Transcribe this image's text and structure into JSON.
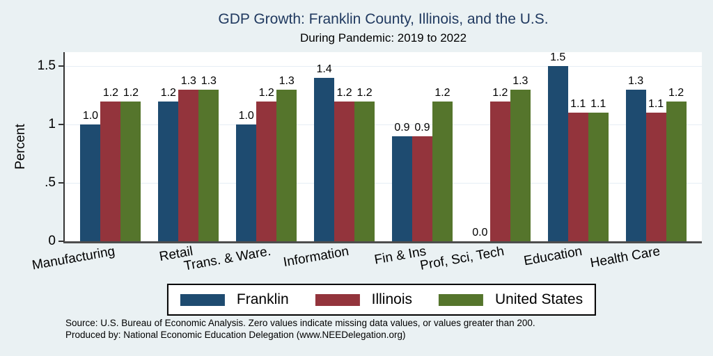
{
  "chart_data": {
    "type": "bar",
    "title": "GDP Growth: Franklin County, Illinois, and the U.S.",
    "subtitle": "During Pandemic: 2019 to 2022",
    "ylabel": "Percent",
    "xlabel": "",
    "ylim": [
      0,
      1.62
    ],
    "grid": true,
    "legend_position": "bottom",
    "value_label_format": "one-decimal",
    "yticks": [
      {
        "value": 0,
        "label": "0"
      },
      {
        "value": 0.5,
        "label": ".5"
      },
      {
        "value": 1,
        "label": "1"
      },
      {
        "value": 1.5,
        "label": "1.5"
      }
    ],
    "categories": [
      "Manufacturing",
      "Retail",
      "Trans. & Ware.",
      "Information",
      "Fin & Ins",
      "Prof, Sci, Tech",
      "Education",
      "Health Care"
    ],
    "series": [
      {
        "name": "Franklin",
        "color": "#1e4b70",
        "values": [
          1.0,
          1.2,
          1.0,
          1.4,
          0.9,
          0.0,
          1.5,
          1.3
        ]
      },
      {
        "name": "Illinois",
        "color": "#93343c",
        "values": [
          1.2,
          1.3,
          1.2,
          1.2,
          0.9,
          1.2,
          1.1,
          1.1
        ]
      },
      {
        "name": "United States",
        "color": "#55752c",
        "values": [
          1.2,
          1.3,
          1.3,
          1.2,
          1.2,
          1.3,
          1.1,
          1.2
        ]
      }
    ]
  },
  "notes": {
    "line1": "Source: U.S. Bureau of Economic Analysis. Zero values indicate missing data values, or values greater than 200.",
    "line2": "Produced by: National Economic Education Delegation (www.NEEDelegation.org)"
  },
  "colors": {
    "background": "#eaf1f3",
    "plot_background": "#ffffff",
    "gridline": "#e6eef4",
    "axis": "#333333",
    "baseline": "#4d4d4d",
    "title": "#213a60",
    "legend_border": "#000000"
  }
}
